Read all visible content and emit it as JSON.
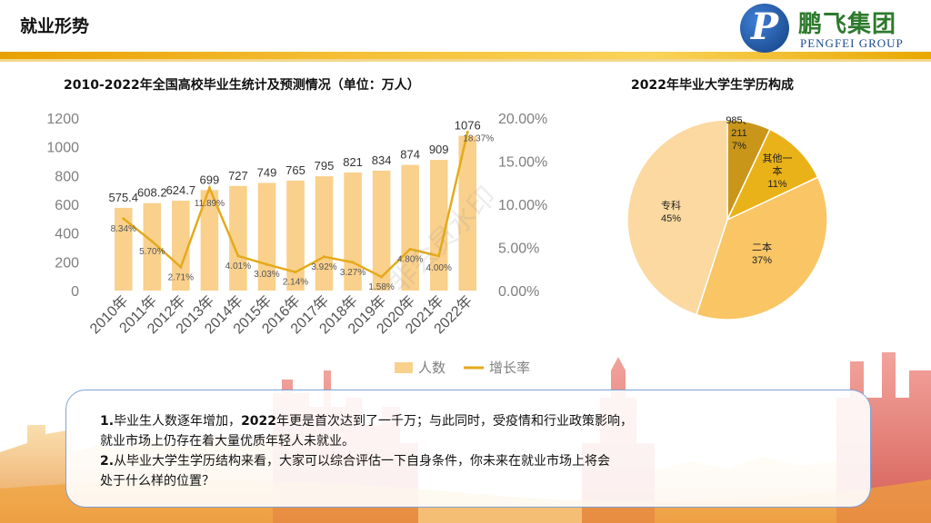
{
  "header": {
    "title": "就业形势",
    "logo_cn": "鹏飞集团",
    "logo_en": "PENGFEI GROUP"
  },
  "chart_data": [
    {
      "type": "bar",
      "title": "2010-2022年全国高校毕业生统计及预测情况（单位：万人）",
      "categories": [
        "2010年",
        "2011年",
        "2012年",
        "2013年",
        "2014年",
        "2015年",
        "2016年",
        "2017年",
        "2018年",
        "2019年",
        "2020年",
        "2021年",
        "2022年"
      ],
      "series": [
        {
          "name": "人数",
          "type": "bar",
          "axis": "left",
          "color": "#f9d08c",
          "values": [
            575.4,
            608.2,
            624.7,
            699,
            727,
            749,
            765,
            795,
            821,
            834,
            874,
            909,
            1076
          ],
          "labels": [
            "575.4",
            "608.2",
            "624.7",
            "699",
            "727",
            "749",
            "765",
            "795",
            "821",
            "834",
            "874",
            "909",
            "1076"
          ]
        },
        {
          "name": "增长率",
          "type": "line",
          "axis": "right",
          "color": "#e4aa1b",
          "values": [
            8.34,
            5.7,
            2.71,
            11.89,
            4.01,
            3.03,
            2.14,
            3.92,
            3.27,
            1.58,
            4.8,
            4.0,
            18.37
          ],
          "labels": [
            "8.34%",
            "5.70%",
            "2.71%",
            "11.89%",
            "4.01%",
            "3.03%",
            "2.14%",
            "3.92%",
            "3.27%",
            "1.58%",
            "4.80%",
            "4.00%",
            "18.37%"
          ]
        }
      ],
      "y_left": {
        "min": 0,
        "max": 1200,
        "ticks": [
          "0",
          "200",
          "400",
          "600",
          "800",
          "1000",
          "1200"
        ]
      },
      "y_right": {
        "min": 0,
        "max": 20,
        "ticks": [
          "0.00%",
          "5.00%",
          "10.00%",
          "15.00%",
          "20.00%"
        ]
      },
      "legend": {
        "position": "bottom",
        "items": [
          "人数",
          "增长率"
        ]
      },
      "grid": false
    },
    {
      "type": "pie",
      "title": "2022年毕业大学生学历构成",
      "slices": [
        {
          "label": "985、211",
          "lines": [
            "985、",
            "211",
            "7%"
          ],
          "value": 7,
          "color": "#c9961a"
        },
        {
          "label": "其他一本",
          "lines": [
            "其他一",
            "本",
            "11%"
          ],
          "value": 11,
          "color": "#eab219"
        },
        {
          "label": "二本",
          "lines": [
            "二本",
            "37%"
          ],
          "value": 37,
          "color": "#f9c565"
        },
        {
          "label": "专科",
          "lines": [
            "专科",
            "45%"
          ],
          "value": 45,
          "color": "#fbd9a0"
        }
      ]
    }
  ],
  "notes": [
    {
      "num": "1.",
      "text": "毕业生人数逐年增加，",
      "bold": "2022",
      "rest": "年更是首次达到了一千万；与此同时，受疫情和行业政策影响，"
    },
    {
      "text": "就业市场上仍存在着大量优质年轻人未就业。"
    },
    {
      "num": "2.",
      "text": "从毕业大学生学历结构来看，大家可以综合评估一下自身条件，你未来在就业市场上将会"
    },
    {
      "text": "处于什么样的位置？"
    }
  ],
  "watermark": "非会员水印"
}
